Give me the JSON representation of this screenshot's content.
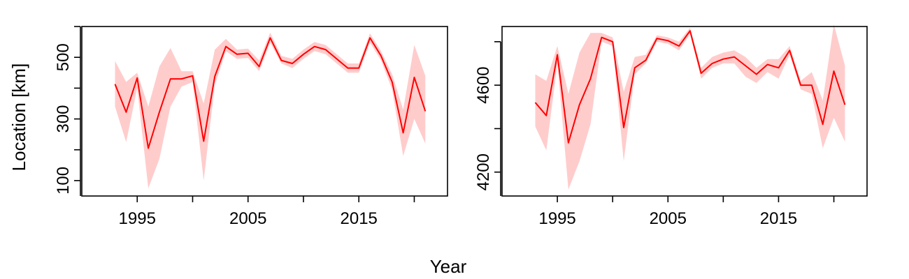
{
  "xlabel": "Year",
  "ylabel": "Location [km]",
  "colors": {
    "line": "#ff0000",
    "band": "#ffcccc"
  },
  "chart_data": [
    {
      "type": "line",
      "title": "",
      "xlabel": "Year",
      "ylabel": "Location [km]",
      "xlim": [
        1990,
        2023
      ],
      "ylim": [
        50,
        600
      ],
      "xticks": [
        1995,
        2000,
        2005,
        2010,
        2015,
        2020
      ],
      "xtick_labels": [
        "1995",
        "",
        "2005",
        "",
        "2015",
        ""
      ],
      "yticks": [
        100,
        200,
        300,
        400,
        500,
        600
      ],
      "ytick_labels": [
        "100",
        "",
        "300",
        "",
        "500",
        ""
      ],
      "grid": false,
      "x": [
        1993,
        1994,
        1995,
        1996,
        1997,
        1998,
        1999,
        2000,
        2001,
        2002,
        2003,
        2004,
        2005,
        2006,
        2007,
        2008,
        2009,
        2010,
        2011,
        2012,
        2013,
        2014,
        2015,
        2016,
        2017,
        2018,
        2019,
        2020,
        2021
      ],
      "series": [
        {
          "values": [
            413,
            322,
            433,
            205,
            322,
            430,
            430,
            440,
            228,
            438,
            535,
            510,
            513,
            470,
            563,
            490,
            480,
            510,
            535,
            525,
            495,
            465,
            465,
            563,
            505,
            420,
            255,
            435,
            325
          ],
          "lower": [
            340,
            225,
            400,
            75,
            170,
            340,
            405,
            420,
            100,
            410,
            520,
            495,
            498,
            455,
            548,
            480,
            465,
            495,
            520,
            510,
            480,
            450,
            450,
            548,
            490,
            395,
            180,
            300,
            220
          ],
          "upper": [
            488,
            420,
            450,
            340,
            470,
            530,
            455,
            455,
            350,
            525,
            560,
            525,
            528,
            490,
            580,
            505,
            495,
            525,
            550,
            540,
            510,
            480,
            480,
            578,
            520,
            445,
            330,
            540,
            440
          ]
        }
      ]
    },
    {
      "type": "line",
      "title": "",
      "xlabel": "Year",
      "ylabel": "",
      "xlim": [
        1990,
        2023
      ],
      "ylim": [
        4090,
        4870
      ],
      "xticks": [
        1995,
        2000,
        2005,
        2010,
        2015,
        2020
      ],
      "xtick_labels": [
        "1995",
        "",
        "2005",
        "",
        "2015",
        ""
      ],
      "yticks": [
        4200,
        4400,
        4600,
        4800
      ],
      "ytick_labels": [
        "4200",
        "",
        "4600",
        ""
      ],
      "grid": false,
      "x": [
        1993,
        1994,
        1995,
        1996,
        1997,
        1998,
        1999,
        2000,
        2001,
        2002,
        2003,
        2004,
        2005,
        2006,
        2007,
        2008,
        2009,
        2010,
        2011,
        2012,
        2013,
        2014,
        2015,
        2016,
        2017,
        2018,
        2019,
        2020,
        2021
      ],
      "series": [
        {
          "values": [
            4520,
            4460,
            4740,
            4335,
            4510,
            4630,
            4820,
            4800,
            4405,
            4680,
            4715,
            4815,
            4805,
            4780,
            4850,
            4655,
            4700,
            4720,
            4730,
            4690,
            4650,
            4695,
            4680,
            4760,
            4600,
            4600,
            4420,
            4665,
            4510
          ],
          "lower": [
            4410,
            4300,
            4700,
            4120,
            4250,
            4420,
            4800,
            4780,
            4250,
            4650,
            4700,
            4800,
            4790,
            4760,
            4835,
            4630,
            4680,
            4700,
            4700,
            4640,
            4610,
            4660,
            4630,
            4740,
            4580,
            4560,
            4310,
            4450,
            4340
          ],
          "upper": [
            4650,
            4620,
            4780,
            4560,
            4750,
            4840,
            4840,
            4820,
            4570,
            4730,
            4740,
            4830,
            4820,
            4800,
            4865,
            4680,
            4730,
            4750,
            4760,
            4730,
            4680,
            4720,
            4720,
            4780,
            4620,
            4660,
            4530,
            4880,
            4690
          ]
        }
      ]
    }
  ]
}
